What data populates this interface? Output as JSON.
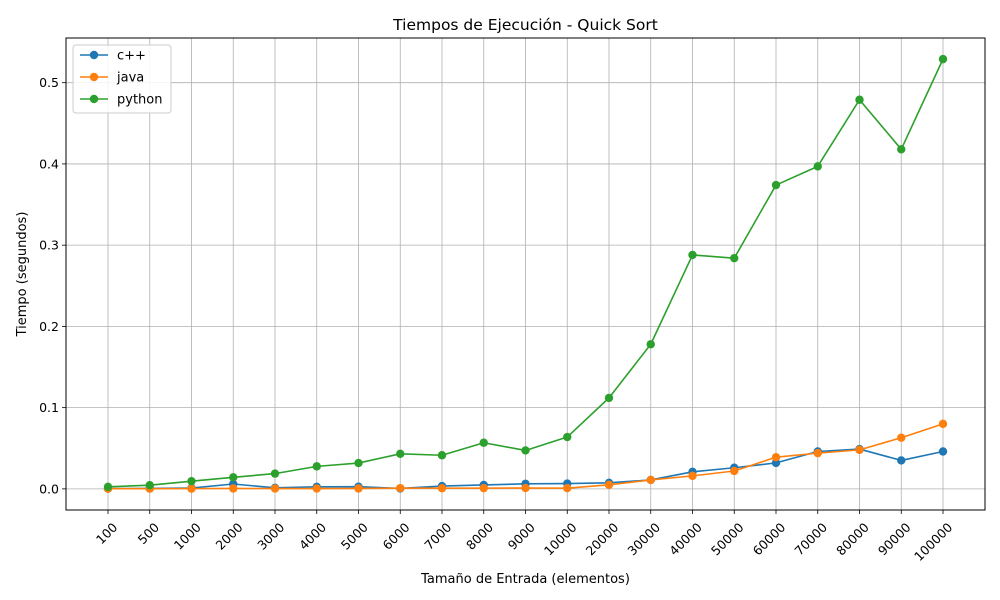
{
  "chart_data": {
    "type": "line",
    "title": "Tiempos de Ejecución - Quick Sort",
    "xlabel": "Tamaño de Entrada (elementos)",
    "ylabel": "Tiempo (segundos)",
    "categories": [
      "100",
      "500",
      "1000",
      "2000",
      "3000",
      "4000",
      "5000",
      "6000",
      "7000",
      "8000",
      "9000",
      "10000",
      "20000",
      "30000",
      "40000",
      "50000",
      "60000",
      "70000",
      "80000",
      "90000",
      "100000"
    ],
    "yticks": [
      "0.0",
      "0.1",
      "0.2",
      "0.3",
      "0.4",
      "0.5"
    ],
    "ylim": [
      -0.026,
      0.555
    ],
    "grid": true,
    "legend_position": "upper-left",
    "series": [
      {
        "name": "c++",
        "color": "#1f77b4",
        "values": [
          0.0003,
          0.0005,
          0.001,
          0.006,
          0.0013,
          0.0025,
          0.0027,
          0.0005,
          0.0035,
          0.0048,
          0.0062,
          0.0065,
          0.0075,
          0.011,
          0.021,
          0.026,
          0.032,
          0.046,
          0.049,
          0.035,
          0.046
        ]
      },
      {
        "name": "java",
        "color": "#ff7f0e",
        "values": [
          0.0002,
          0.0002,
          0.0003,
          0.0005,
          0.0004,
          0.0004,
          0.0005,
          0.0009,
          0.0008,
          0.0009,
          0.001,
          0.0009,
          0.005,
          0.011,
          0.016,
          0.022,
          0.039,
          0.044,
          0.048,
          0.063,
          0.08
        ]
      },
      {
        "name": "python",
        "color": "#2ca02c",
        "values": [
          0.0025,
          0.0045,
          0.0095,
          0.0142,
          0.0188,
          0.0277,
          0.0318,
          0.0432,
          0.0414,
          0.0568,
          0.0473,
          0.0638,
          0.112,
          0.178,
          0.288,
          0.284,
          0.374,
          0.397,
          0.479,
          0.418,
          0.529
        ]
      }
    ]
  }
}
